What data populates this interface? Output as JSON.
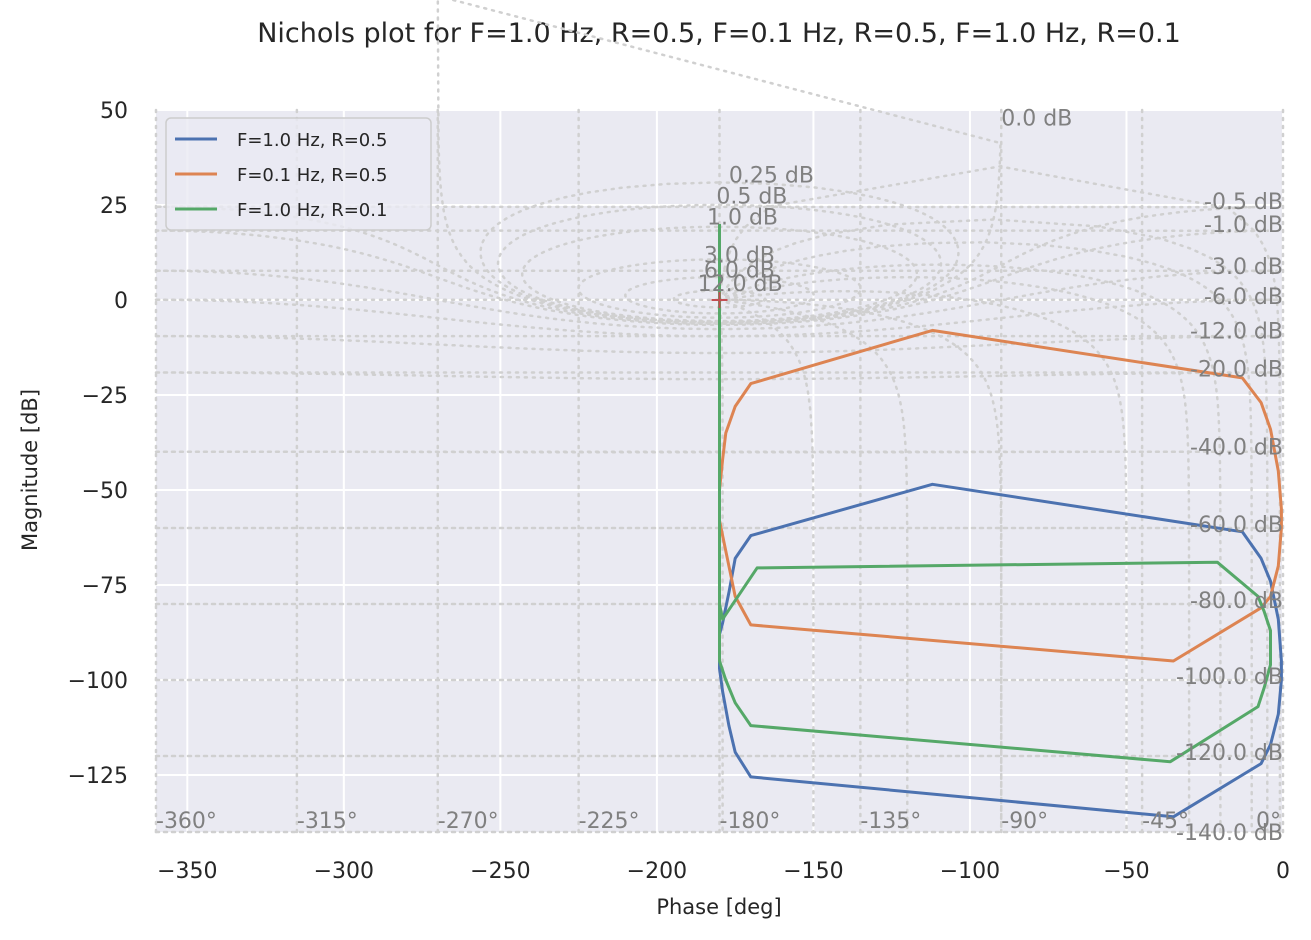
{
  "chart_data": {
    "type": "line",
    "title": "Nichols plot for F=1.0 Hz, R=0.5, F=0.1 Hz, R=0.5, F=1.0 Hz, R=0.1",
    "xlabel": "Phase [deg]",
    "ylabel": "Magnitude [dB]",
    "xlim": [
      -360,
      0
    ],
    "ylim": [
      -140,
      50
    ],
    "xticks": [
      -350,
      -300,
      -250,
      -200,
      -150,
      -100,
      -50,
      0
    ],
    "yticks": [
      50,
      25,
      0,
      -25,
      -50,
      -75,
      -100,
      -125
    ],
    "xtick_labels": [
      "−350",
      "−300",
      "−250",
      "−200",
      "−150",
      "−100",
      "−50",
      "0"
    ],
    "ytick_labels": [
      "50",
      "25",
      "0",
      "−25",
      "−50",
      "−75",
      "−100",
      "−125"
    ],
    "grid": true,
    "legend_position": "top-left",
    "colors": {
      "background": "#eaeaf2",
      "gridline": "#ffffff",
      "nichols_grid": "#d0d0d0",
      "critical_point": "#c44e52"
    },
    "critical_point": {
      "x": -180,
      "y": 0,
      "marker": "+"
    },
    "closed_loop_magnitude_labels": [
      {
        "text": "0.0 dB",
        "x": -90,
        "y": 48
      },
      {
        "text": "0.25 dB",
        "x": -177,
        "y": 33
      },
      {
        "text": "0.5 dB",
        "x": -181,
        "y": 27.5
      },
      {
        "text": "1.0 dB",
        "x": -184,
        "y": 22
      },
      {
        "text": "3.0 dB",
        "x": -185,
        "y": 12
      },
      {
        "text": "6.0 dB",
        "x": -185,
        "y": 8
      },
      {
        "text": "12.0 dB",
        "x": -187,
        "y": 4.5
      },
      {
        "text": "-0.5 dB",
        "x": 0,
        "y": 26
      },
      {
        "text": "-1.0 dB",
        "x": 0,
        "y": 20
      },
      {
        "text": "-3.0 dB",
        "x": 0,
        "y": 9
      },
      {
        "text": "-6.0 dB",
        "x": 0,
        "y": 1
      },
      {
        "text": "-12.0 dB",
        "x": 0,
        "y": -8
      },
      {
        "text": "-20.0 dB",
        "x": 0,
        "y": -18
      },
      {
        "text": "-40.0 dB",
        "x": 0,
        "y": -38.5
      },
      {
        "text": "-60.0 dB",
        "x": 0,
        "y": -59
      },
      {
        "text": "-80.0 dB",
        "x": 0,
        "y": -79
      },
      {
        "text": "-100.0 dB",
        "x": 0,
        "y": -99
      },
      {
        "text": "-120.0 dB",
        "x": 0,
        "y": -119
      },
      {
        "text": "-140.0 dB",
        "x": 0,
        "y": -140
      }
    ],
    "phase_labels": [
      {
        "text": "-360°",
        "x": -360
      },
      {
        "text": "-315°",
        "x": -315
      },
      {
        "text": "-270°",
        "x": -270
      },
      {
        "text": "-225°",
        "x": -225
      },
      {
        "text": "-180°",
        "x": -180
      },
      {
        "text": "-135°",
        "x": -135
      },
      {
        "text": "-90°",
        "x": -90
      },
      {
        "text": "-45°",
        "x": -45
      },
      {
        "text": "0°",
        "x": 0
      }
    ],
    "series": [
      {
        "name": "F=1.0 Hz, R=0.5",
        "color": "#4c72b0",
        "x": [
          -180,
          -180,
          -179,
          -177,
          -175,
          -170,
          -112,
          -13,
          -7,
          -4,
          -1.5,
          -0.5,
          -0.5,
          -1.5,
          -4,
          -7,
          -35,
          -170,
          -175,
          -177,
          -179,
          -180,
          -180
        ],
        "y": [
          -85,
          -88,
          -85,
          -77,
          -68,
          -62,
          -48.5,
          -61,
          -68,
          -74,
          -84,
          -95,
          -100,
          -109,
          -117,
          -122,
          -136,
          -125.5,
          -119,
          -112,
          -103,
          -97,
          -90
        ]
      },
      {
        "name": "F=0.1 Hz, R=0.5",
        "color": "#dd8452",
        "x": [
          -180,
          -180,
          -179,
          -178,
          -175,
          -170,
          -112,
          -13,
          -7,
          -4,
          -1.5,
          -0.5,
          -0.5,
          -1.5,
          -4,
          -7,
          -35,
          -170,
          -175,
          -177,
          -179,
          -180,
          -180
        ],
        "y": [
          -55,
          -50,
          -42,
          -35,
          -28,
          -22,
          -8,
          -20.5,
          -27,
          -34,
          -45,
          -55,
          -60,
          -70,
          -78,
          -81,
          -95,
          -85.5,
          -78,
          -70,
          -62,
          -58,
          -55
        ]
      },
      {
        "name": "F=1.0 Hz, R=0.1",
        "color": "#55a868",
        "x": [
          -180,
          -180,
          -180,
          -179,
          -168,
          -21,
          -8,
          -6,
          -4,
          -4,
          -6,
          -8,
          -36,
          -170,
          -175,
          -178,
          -180,
          -180,
          -180
        ],
        "y": [
          20,
          0,
          -80,
          -84,
          -70.5,
          -69,
          -78,
          -82,
          -87,
          -96,
          -102,
          -107,
          -121.5,
          -112,
          -106,
          -100,
          -95,
          -85,
          -80
        ]
      }
    ]
  }
}
